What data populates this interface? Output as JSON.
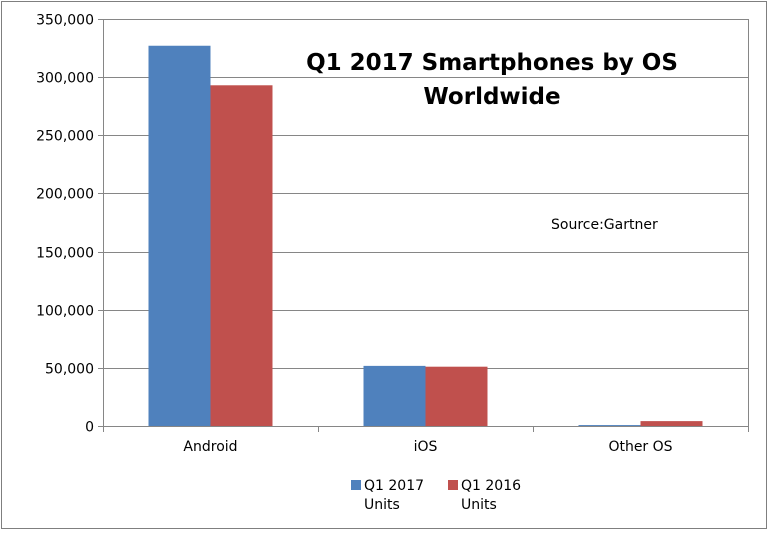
{
  "chart_data": {
    "type": "bar",
    "title_line1": "Q1 2017 Smartphones by OS",
    "title_line2": "Worldwide",
    "annotation": "Source:Gartner",
    "categories": [
      "Android",
      "iOS",
      "Other OS"
    ],
    "series": [
      {
        "name": "Q1 2017 Units",
        "legend_line1": "Q1 2017",
        "legend_line2": "Units",
        "color": "#4F81BD",
        "values": [
          327000,
          51700,
          800
        ]
      },
      {
        "name": "Q1 2016 Units",
        "legend_line1": "Q1 2016",
        "legend_line2": "Units",
        "color": "#C0504D",
        "values": [
          293000,
          51000,
          4200
        ]
      }
    ],
    "ylim": [
      0,
      350000
    ],
    "yticks": [
      0,
      50000,
      100000,
      150000,
      200000,
      250000,
      300000,
      350000
    ],
    "ytick_labels": [
      "0",
      "50,000",
      "100,000",
      "150,000",
      "200,000",
      "250,000",
      "300,000",
      "350,000"
    ],
    "grid": true,
    "legend_position": "bottom"
  }
}
